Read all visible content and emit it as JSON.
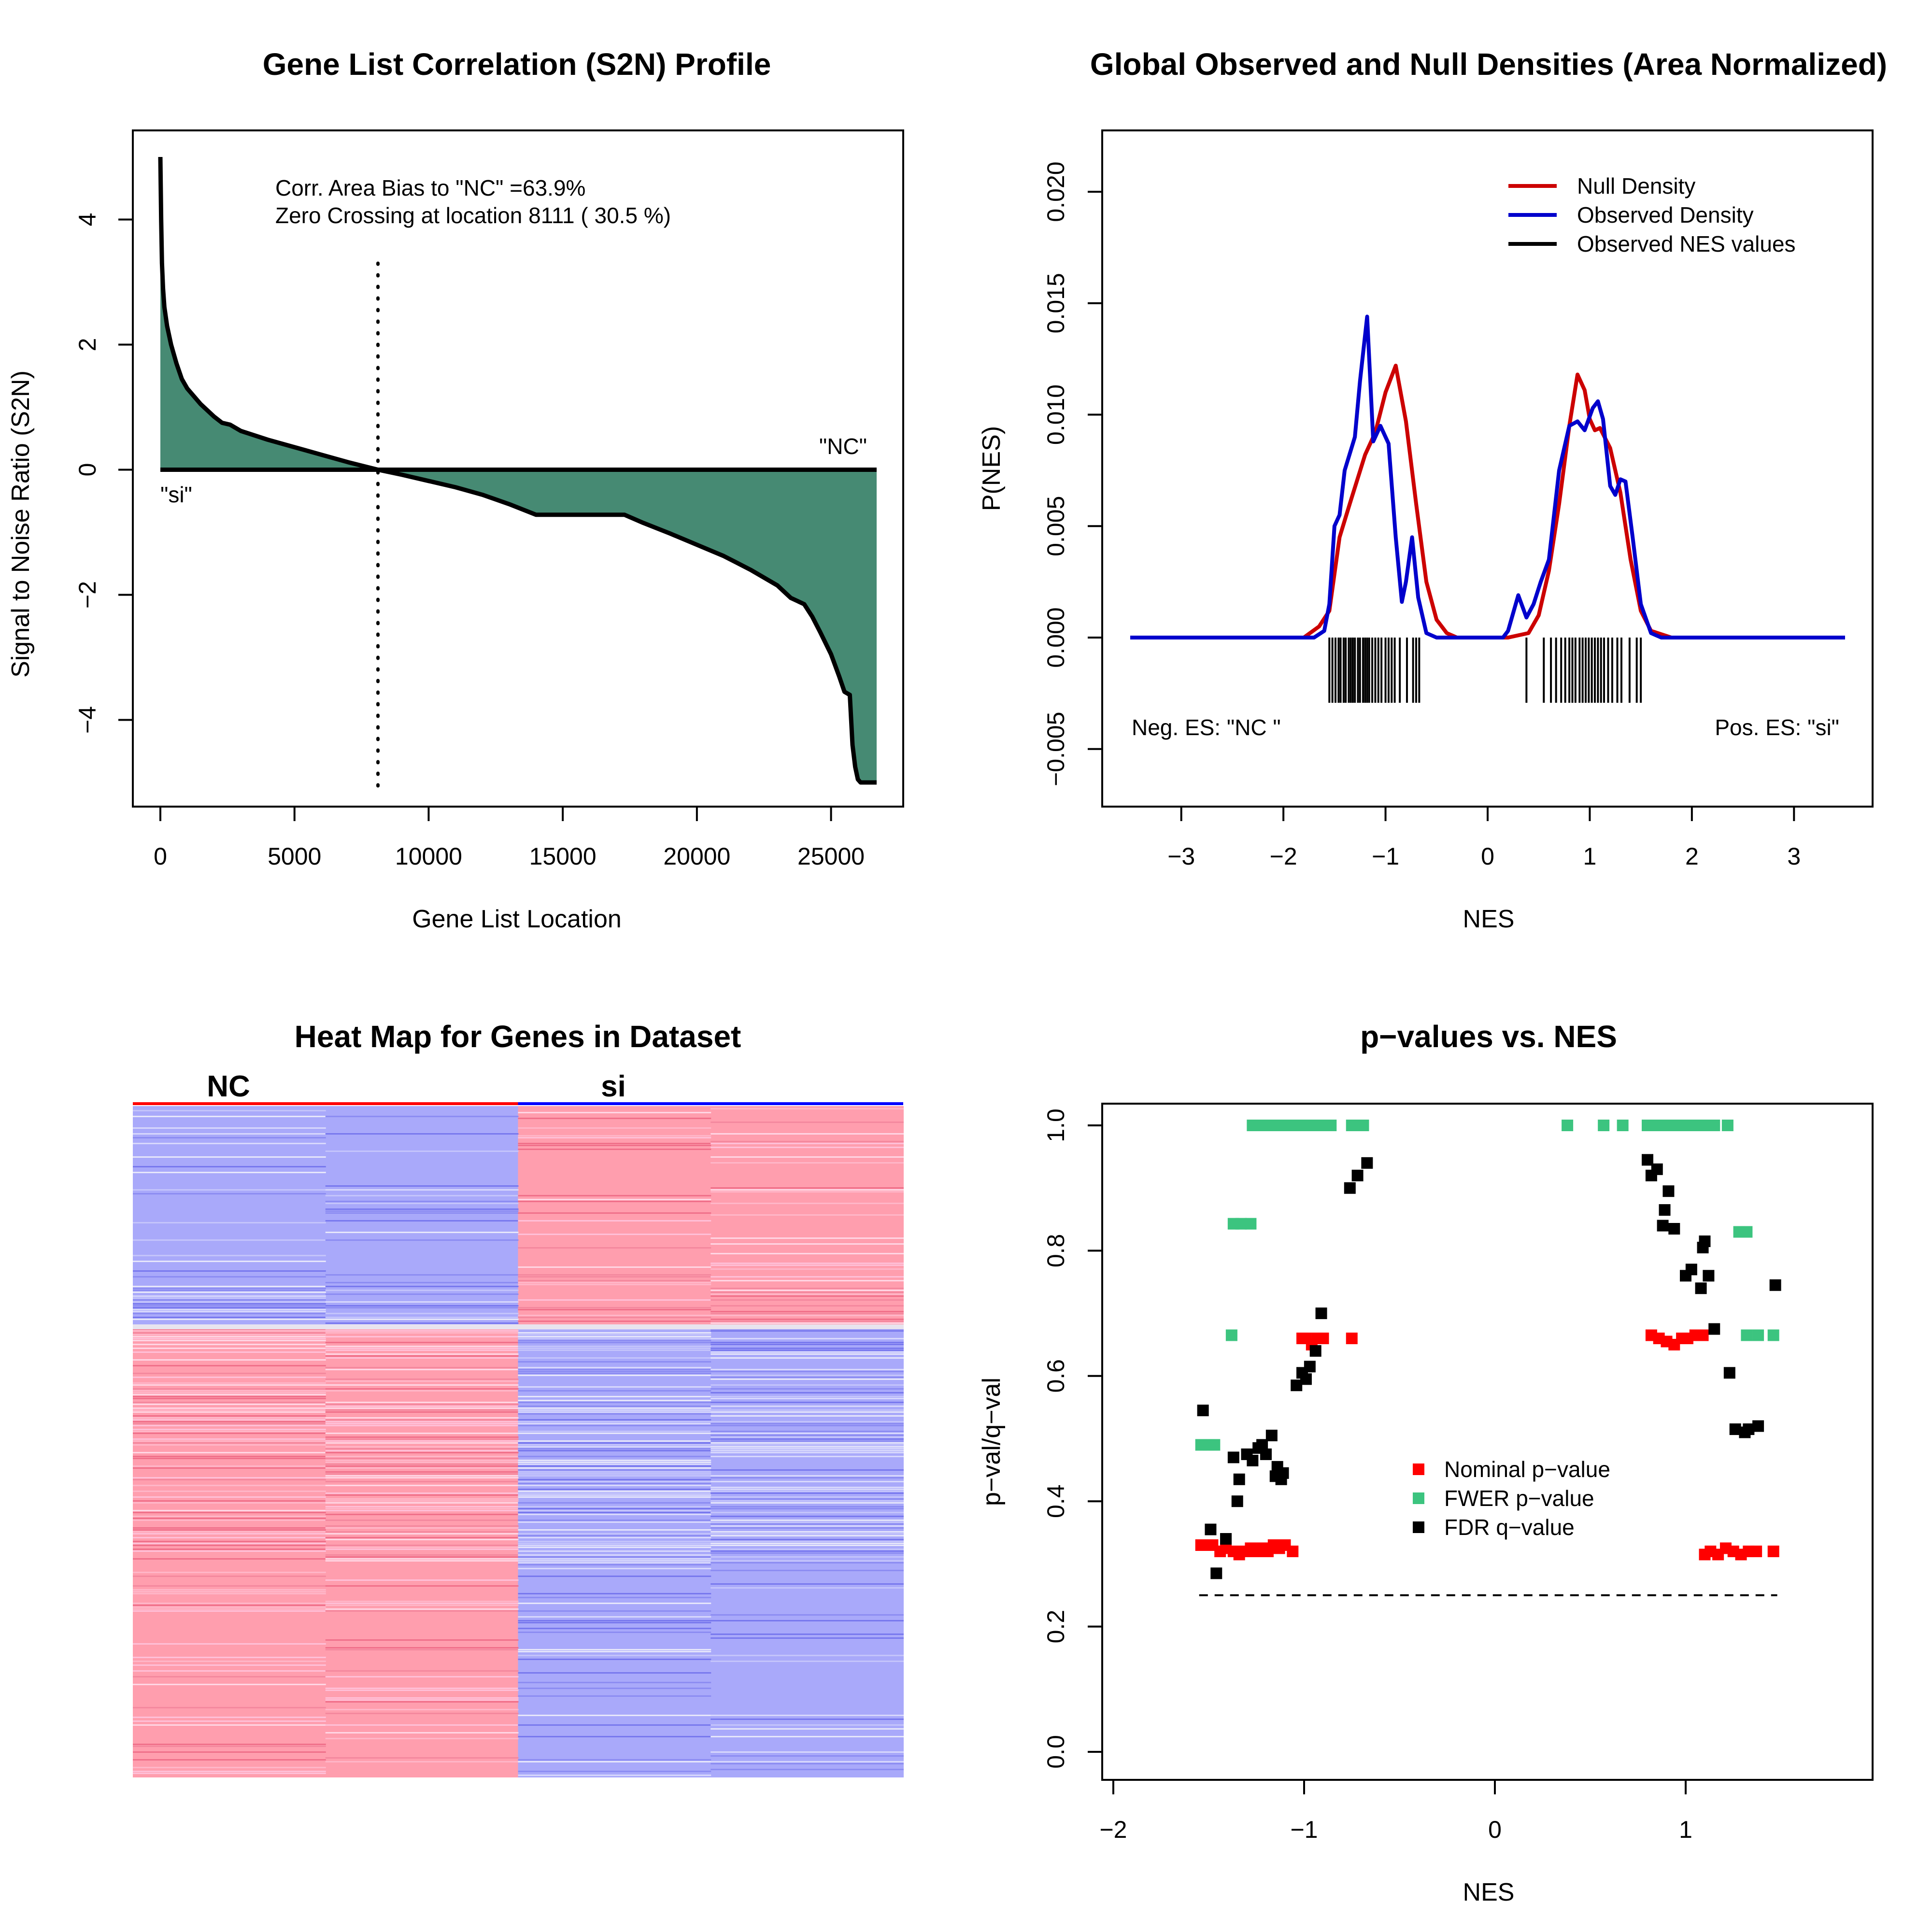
{
  "colors": {
    "fill_green": "#468a73",
    "null_red": "#cc0000",
    "observed_blue": "#0000cc",
    "heat_red": "#ff9eae",
    "heat_blue": "#a9a9fa",
    "pval_red": "#ff0000",
    "fwer_green": "#3cc47f",
    "fdr_black": "#000000"
  },
  "chart_data": [
    {
      "id": "s2n",
      "type": "area",
      "title": "Gene List Correlation (S2N) Profile",
      "xlabel": "Gene List Location",
      "ylabel": "Signal to Noise Ratio (S2N)",
      "xlim": [
        0,
        26700
      ],
      "ylim": [
        -5,
        5
      ],
      "xticks": [
        0,
        5000,
        10000,
        15000,
        20000,
        25000
      ],
      "yticks": [
        -4,
        -2,
        0,
        2,
        4
      ],
      "x": [
        0,
        30,
        60,
        100,
        150,
        250,
        400,
        600,
        800,
        1000,
        1500,
        2000,
        2300,
        2600,
        3000,
        4000,
        5000,
        6000,
        7000,
        8111,
        9000,
        10000,
        11000,
        12000,
        13000,
        14000,
        15000,
        16000,
        17300,
        18000,
        19000,
        20000,
        21000,
        22000,
        23000,
        23500,
        24000,
        24300,
        24600,
        25000,
        25300,
        25500,
        25700,
        25750,
        25800,
        25900,
        26000,
        26100,
        26300,
        26700
      ],
      "y": [
        5.0,
        4.0,
        3.3,
        2.9,
        2.6,
        2.3,
        2.0,
        1.7,
        1.45,
        1.3,
        1.05,
        0.85,
        0.75,
        0.72,
        0.62,
        0.48,
        0.36,
        0.24,
        0.12,
        0.0,
        -0.08,
        -0.18,
        -0.28,
        -0.4,
        -0.55,
        -0.72,
        -0.72,
        -0.72,
        -0.72,
        -0.85,
        -1.02,
        -1.2,
        -1.38,
        -1.6,
        -1.85,
        -2.05,
        -2.15,
        -2.35,
        -2.6,
        -2.95,
        -3.3,
        -3.55,
        -3.6,
        -4.0,
        -4.4,
        -4.75,
        -4.95,
        -5.0,
        -5.0,
        -5.0
      ],
      "zero_crossing": 8111,
      "annotations": [
        "Corr. Area Bias to \"NC\" =63.9%",
        "Zero Crossing at location  8111  ( 30.5  %)"
      ],
      "label_left": "\"si\"",
      "label_right": "\"NC\""
    },
    {
      "id": "density",
      "type": "line",
      "title": "Global Observed and Null Densities (Area Normalized)",
      "xlabel": "NES",
      "ylabel": "P(NES)",
      "xlim": [
        -3.5,
        3.5
      ],
      "ylim": [
        -0.007,
        0.0225
      ],
      "xticks": [
        -3,
        -2,
        -1,
        0,
        1,
        2,
        3
      ],
      "yticks": [
        -0.005,
        0.0,
        0.005,
        0.01,
        0.015,
        0.02
      ],
      "ytick_labels": [
        "-0.005",
        "0.000",
        "0.005",
        "0.010",
        "0.015",
        "0.020"
      ],
      "legend_entries": [
        "Null Density",
        "Observed Density",
        "Observed NES values"
      ],
      "series": [
        {
          "name": "Null Density",
          "x": [
            -3.5,
            -1.8,
            -1.65,
            -1.55,
            -1.45,
            -1.35,
            -1.2,
            -1.1,
            -1.0,
            -0.9,
            -0.8,
            -0.7,
            -0.6,
            -0.5,
            -0.4,
            -0.3,
            -0.2,
            0.2,
            0.4,
            0.5,
            0.6,
            0.7,
            0.8,
            0.88,
            0.95,
            1.0,
            1.05,
            1.1,
            1.2,
            1.3,
            1.4,
            1.5,
            1.6,
            1.8,
            3.5
          ],
          "y": [
            0,
            0,
            0.0005,
            0.0012,
            0.0045,
            0.006,
            0.0082,
            0.0092,
            0.011,
            0.0122,
            0.0097,
            0.006,
            0.0025,
            0.0008,
            0.0002,
            0,
            0,
            0,
            0.0002,
            0.001,
            0.003,
            0.006,
            0.0095,
            0.0118,
            0.0111,
            0.0098,
            0.0093,
            0.0094,
            0.0085,
            0.0065,
            0.0035,
            0.0012,
            0.0003,
            0,
            0
          ]
        },
        {
          "name": "Observed Density",
          "x": [
            -3.5,
            -1.7,
            -1.6,
            -1.55,
            -1.5,
            -1.45,
            -1.4,
            -1.3,
            -1.25,
            -1.18,
            -1.12,
            -1.05,
            -0.97,
            -0.9,
            -0.84,
            -0.8,
            -0.74,
            -0.68,
            -0.6,
            -0.5,
            0.15,
            0.2,
            0.3,
            0.38,
            0.45,
            0.52,
            0.6,
            0.7,
            0.8,
            0.88,
            0.95,
            1.03,
            1.08,
            1.13,
            1.2,
            1.25,
            1.3,
            1.35,
            1.42,
            1.5,
            1.6,
            1.7,
            3.5
          ],
          "y": [
            0,
            0,
            0.0003,
            0.0015,
            0.005,
            0.0055,
            0.0075,
            0.009,
            0.0115,
            0.0144,
            0.0088,
            0.0095,
            0.0087,
            0.0045,
            0.0016,
            0.0025,
            0.0045,
            0.0018,
            0.0002,
            0,
            0,
            0.0003,
            0.0019,
            0.0009,
            0.0015,
            0.0025,
            0.0035,
            0.0075,
            0.0095,
            0.0097,
            0.0093,
            0.0103,
            0.0106,
            0.0098,
            0.0068,
            0.0064,
            0.0071,
            0.007,
            0.0045,
            0.0015,
            0.0002,
            0,
            0
          ]
        }
      ],
      "rug_values": [
        -1.55,
        -1.52,
        -1.49,
        -1.46,
        -1.44,
        -1.41,
        -1.39,
        -1.36,
        -1.34,
        -1.32,
        -1.3,
        -1.27,
        -1.25,
        -1.22,
        -1.2,
        -1.18,
        -1.16,
        -1.13,
        -1.1,
        -1.07,
        -1.04,
        -1.0,
        -0.97,
        -0.94,
        -0.91,
        -0.86,
        -0.79,
        -0.73,
        -0.7,
        -0.67,
        0.38,
        0.55,
        0.62,
        0.67,
        0.72,
        0.76,
        0.8,
        0.83,
        0.86,
        0.9,
        0.93,
        0.96,
        0.99,
        1.02,
        1.05,
        1.08,
        1.11,
        1.14,
        1.18,
        1.22,
        1.27,
        1.31,
        1.39,
        1.46,
        1.5
      ],
      "label_left": "Neg. ES: \"NC \"",
      "label_right": "Pos. ES: \"si\""
    },
    {
      "id": "heatmap",
      "type": "heatmap",
      "title": "Heat Map for Genes in Dataset",
      "column_groups": [
        "NC",
        "si"
      ],
      "columns": 4
    },
    {
      "id": "pvalues",
      "type": "scatter",
      "title": "p−values vs. NES",
      "xlabel": "NES",
      "ylabel": "p−val/q−val",
      "xlim": [
        -2.05,
        1.98
      ],
      "ylim": [
        -0.04,
        1.04
      ],
      "xticks": [
        -2,
        -1,
        0,
        1
      ],
      "yticks": [
        0.0,
        0.2,
        0.4,
        0.6,
        0.8,
        1.0
      ],
      "ytick_labels": [
        "0.0",
        "0.2",
        "0.4",
        "0.6",
        "0.8",
        "1.0"
      ],
      "fdr_threshold": 0.25,
      "threshold_range": [
        -1.55,
        1.48
      ],
      "legend_entries": [
        "Nominal p−value",
        "FWER p−value",
        "FDR q−value"
      ],
      "series": [
        {
          "name": "Nominal p−value",
          "x": [
            -1.54,
            -1.51,
            -1.48,
            -1.44,
            -1.41,
            -1.37,
            -1.34,
            -1.31,
            -1.28,
            -1.25,
            -1.22,
            -1.19,
            -1.16,
            -1.13,
            -1.1,
            -1.06,
            -1.01,
            -0.99,
            -0.96,
            -0.93,
            -0.9,
            -0.75,
            0.82,
            0.86,
            0.9,
            0.94,
            0.98,
            1.01,
            1.05,
            1.09,
            1.1,
            1.13,
            1.17,
            1.21,
            1.25,
            1.29,
            1.33,
            1.37,
            1.46
          ],
          "y": [
            0.33,
            0.33,
            0.33,
            0.32,
            0.325,
            0.32,
            0.315,
            0.32,
            0.325,
            0.32,
            0.325,
            0.32,
            0.33,
            0.325,
            0.33,
            0.32,
            0.66,
            0.66,
            0.65,
            0.66,
            0.66,
            0.66,
            0.665,
            0.66,
            0.655,
            0.65,
            0.66,
            0.66,
            0.665,
            0.665,
            0.315,
            0.32,
            0.315,
            0.325,
            0.32,
            0.315,
            0.32,
            0.32,
            0.32
          ]
        },
        {
          "name": "FWER p−value",
          "x": [
            -1.54,
            -1.5,
            -1.47,
            -1.38,
            -1.37,
            -1.33,
            -1.28,
            -1.27,
            -1.23,
            -1.19,
            -1.15,
            -1.11,
            -1.07,
            -1.03,
            -1.0,
            -0.96,
            -0.92,
            -0.86,
            -0.75,
            -0.69,
            0.38,
            0.57,
            0.67,
            0.8,
            0.85,
            0.9,
            0.95,
            1.0,
            1.05,
            1.1,
            1.15,
            1.22,
            1.28,
            1.32,
            1.32,
            1.38,
            1.46
          ],
          "y": [
            0.49,
            0.49,
            0.49,
            0.665,
            0.843,
            0.843,
            0.843,
            1.0,
            1.0,
            1.0,
            1.0,
            1.0,
            1.0,
            1.0,
            1.0,
            1.0,
            1.0,
            1.0,
            1.0,
            1.0,
            1.0,
            1.0,
            1.0,
            1.0,
            1.0,
            1.0,
            1.0,
            1.0,
            1.0,
            1.0,
            1.0,
            1.0,
            0.83,
            0.83,
            0.665,
            0.665,
            0.665
          ]
        },
        {
          "name": "FDR q−value",
          "x": [
            -1.53,
            -1.49,
            -1.46,
            -1.41,
            -1.37,
            -1.35,
            -1.34,
            -1.3,
            -1.27,
            -1.24,
            -1.22,
            -1.2,
            -1.17,
            -1.15,
            -1.14,
            -1.12,
            -1.11,
            -1.04,
            -1.01,
            -0.99,
            -0.97,
            -0.94,
            -0.91,
            -0.76,
            -0.72,
            -0.67,
            0.8,
            0.82,
            0.85,
            0.88,
            0.89,
            0.91,
            0.94,
            1.0,
            1.03,
            1.08,
            1.09,
            1.1,
            1.12,
            1.15,
            1.23,
            1.26,
            1.31,
            1.33,
            1.38,
            1.47
          ],
          "y": [
            0.545,
            0.355,
            0.285,
            0.34,
            0.47,
            0.4,
            0.435,
            0.475,
            0.465,
            0.485,
            0.49,
            0.475,
            0.505,
            0.44,
            0.455,
            0.435,
            0.445,
            0.585,
            0.605,
            0.595,
            0.615,
            0.64,
            0.7,
            0.9,
            0.92,
            0.94,
            0.945,
            0.92,
            0.93,
            0.84,
            0.865,
            0.895,
            0.835,
            0.76,
            0.77,
            0.74,
            0.805,
            0.815,
            0.76,
            0.675,
            0.605,
            0.515,
            0.51,
            0.515,
            0.52,
            0.745
          ]
        }
      ]
    }
  ]
}
